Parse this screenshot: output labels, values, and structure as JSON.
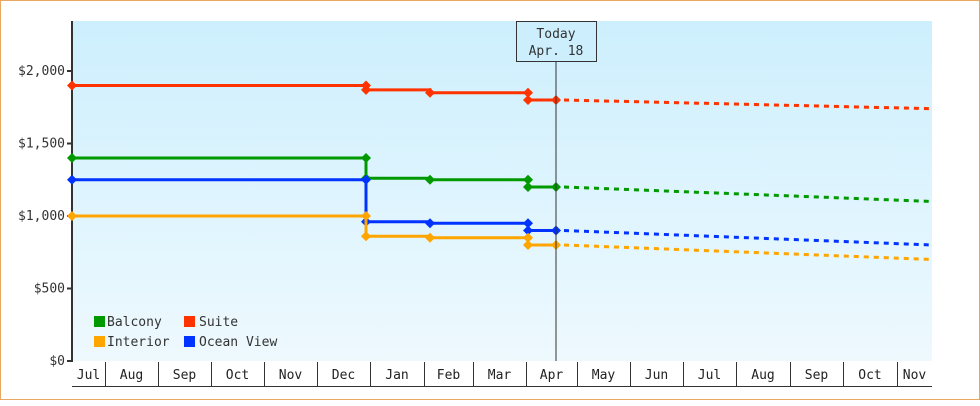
{
  "chart_data": {
    "type": "line",
    "title": "",
    "xlabel": "",
    "ylabel": "",
    "ylim": [
      0,
      2000
    ],
    "y_ticks": [
      "$0",
      "$500",
      "$1,000",
      "$1,500",
      "$2,000"
    ],
    "x_tick_labels": [
      "Jul",
      "Aug",
      "Sep",
      "Oct",
      "Nov",
      "Dec",
      "Jan",
      "Feb",
      "Mar",
      "Apr",
      "May",
      "Jun",
      "Jul",
      "Aug",
      "Sep",
      "Oct",
      "Nov"
    ],
    "grid": false,
    "legend_position": "bottom-left inside",
    "annotation": {
      "line1": "Today",
      "line2": "Apr. 18"
    },
    "series": [
      {
        "name": "Suite",
        "color": "#ff3300",
        "points": [
          [
            "Jul start",
            1900
          ],
          [
            "Dec late",
            1900
          ],
          [
            "Dec late",
            1870
          ],
          [
            "Feb",
            1850
          ],
          [
            "Mar late",
            1850
          ],
          [
            "Mar late",
            1800
          ],
          [
            "Apr 18",
            1800
          ]
        ],
        "forecast": [
          [
            "Apr 18",
            1800
          ],
          [
            "Nov end",
            1740
          ]
        ]
      },
      {
        "name": "Balcony",
        "color": "#009900",
        "points": [
          [
            "Jul start",
            1400
          ],
          [
            "Dec late",
            1400
          ],
          [
            "Dec late",
            1260
          ],
          [
            "Feb",
            1250
          ],
          [
            "Mar late",
            1250
          ],
          [
            "Mar late",
            1200
          ],
          [
            "Apr 18",
            1200
          ]
        ],
        "forecast": [
          [
            "Apr 18",
            1200
          ],
          [
            "Nov end",
            1100
          ]
        ]
      },
      {
        "name": "Ocean View",
        "color": "#0033ff",
        "points": [
          [
            "Jul start",
            1250
          ],
          [
            "Dec late",
            1250
          ],
          [
            "Dec late",
            960
          ],
          [
            "Feb",
            950
          ],
          [
            "Mar late",
            950
          ],
          [
            "Mar late",
            900
          ],
          [
            "Apr 18",
            900
          ]
        ],
        "forecast": [
          [
            "Apr 18",
            900
          ],
          [
            "Nov end",
            800
          ]
        ]
      },
      {
        "name": "Interior",
        "color": "#ffa500",
        "points": [
          [
            "Jul start",
            1000
          ],
          [
            "Dec late",
            1000
          ],
          [
            "Dec late",
            860
          ],
          [
            "Feb",
            850
          ],
          [
            "Mar late",
            850
          ],
          [
            "Mar late",
            800
          ],
          [
            "Apr 18",
            800
          ]
        ],
        "forecast": [
          [
            "Apr 18",
            800
          ],
          [
            "Nov end",
            700
          ]
        ]
      }
    ]
  },
  "legend": [
    {
      "label": "Balcony",
      "color": "#009900"
    },
    {
      "label": "Suite",
      "color": "#ff3300"
    },
    {
      "label": "Interior",
      "color": "#ffa500"
    },
    {
      "label": "Ocean View",
      "color": "#0033ff"
    }
  ]
}
